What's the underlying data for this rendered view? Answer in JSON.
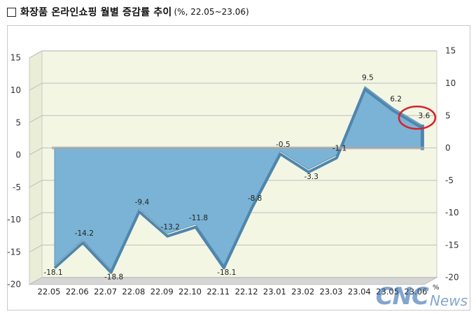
{
  "header": {
    "title_main": "화장품 온라인쇼핑 월별 증감률 추이",
    "title_sub": "(%, 22.05~23.06)"
  },
  "watermark": {
    "brand": "CNC",
    "suffix": "News"
  },
  "chart_data": {
    "type": "area",
    "unit_label": "%",
    "categories": [
      "22.05",
      "22.06",
      "22.07",
      "22.08",
      "22.09",
      "22.10",
      "22.11",
      "22.12",
      "23.01",
      "23.02",
      "23.03",
      "23.04",
      "23.05",
      "23.06"
    ],
    "values": [
      -18.1,
      -14.2,
      -18.8,
      -9.4,
      -13.2,
      -11.8,
      -18.1,
      -8.8,
      -0.5,
      -3.3,
      -1.1,
      9.5,
      6.2,
      3.6
    ],
    "data_labels": [
      "-18.1",
      "-14.2",
      "-18.8",
      "-9.4",
      "-13.2",
      "-11.8",
      "-18.1",
      "-8.8",
      "-0.5",
      "-3.3",
      "-1.1",
      "9.5",
      "6.2",
      "3.6"
    ],
    "ylim": [
      -20,
      15
    ],
    "yticks": [
      15,
      10,
      5,
      0,
      -5,
      -10,
      -15,
      -20
    ],
    "ytick_labels": [
      "15",
      "10",
      "5",
      "0",
      "-5",
      "-10",
      "-15",
      "-20"
    ],
    "grid": true,
    "legend": "none",
    "highlighted_category": "23.06",
    "colors": {
      "fill": "#7ab3d6",
      "side": "#4f86ab",
      "highlight": "#d9202a",
      "grid": "#bdbdbd",
      "wall": "#f4f6e4"
    }
  }
}
